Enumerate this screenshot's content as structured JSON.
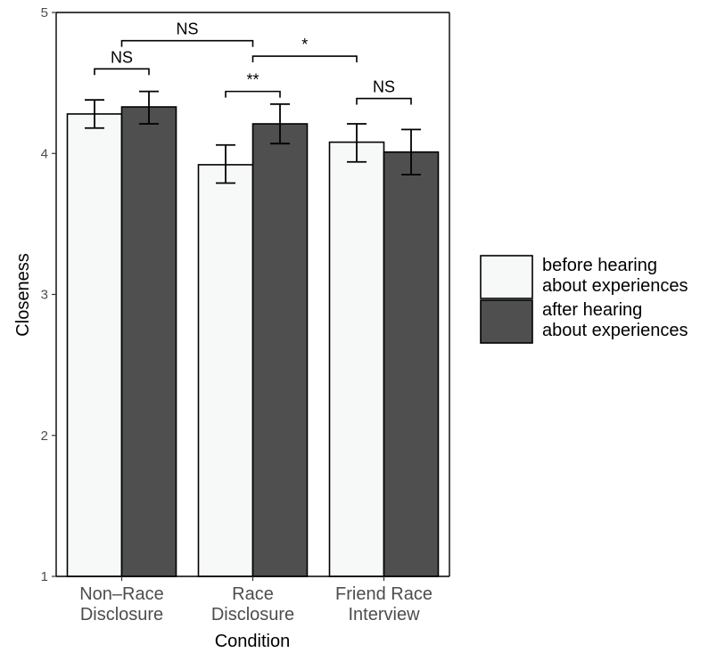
{
  "chart_data": {
    "type": "bar",
    "xlabel": "Condition",
    "ylabel": "Closeness",
    "ylim": [
      1,
      5
    ],
    "yticks": [
      "1",
      "2",
      "3",
      "4",
      "5"
    ],
    "categories": [
      [
        "Non–Race",
        "Disclosure"
      ],
      [
        "Race",
        "Disclosure"
      ],
      [
        "Friend Race",
        "Interview"
      ]
    ],
    "series": [
      {
        "name": [
          "before hearing",
          "about experiences"
        ],
        "color": "#f7f9f9",
        "values": [
          4.28,
          3.92,
          4.08
        ],
        "err_low": [
          4.18,
          3.79,
          3.94
        ],
        "err_high": [
          4.38,
          4.06,
          4.21
        ]
      },
      {
        "name": [
          "after hearing",
          "about experiences"
        ],
        "color": "#4f4f4f",
        "values": [
          4.33,
          4.21,
          4.01
        ],
        "err_low": [
          4.21,
          4.07,
          3.85
        ],
        "err_high": [
          4.44,
          4.35,
          4.17
        ]
      }
    ],
    "comparisons": [
      {
        "label": "NS",
        "from": [
          0,
          0
        ],
        "to": [
          0,
          1
        ],
        "y": 4.6
      },
      {
        "label": "**",
        "from": [
          1,
          0
        ],
        "to": [
          1,
          1
        ],
        "y": 4.44
      },
      {
        "label": "NS",
        "from": [
          2,
          0
        ],
        "to": [
          2,
          1
        ],
        "y": 4.39
      },
      {
        "label": "NS",
        "from": [
          0,
          "mid"
        ],
        "to": [
          1,
          "mid"
        ],
        "y": 4.8
      },
      {
        "label": "*",
        "from": [
          1,
          "mid"
        ],
        "to": [
          2,
          0
        ],
        "y": 4.69
      }
    ],
    "legend_position": "right",
    "grid": false
  }
}
